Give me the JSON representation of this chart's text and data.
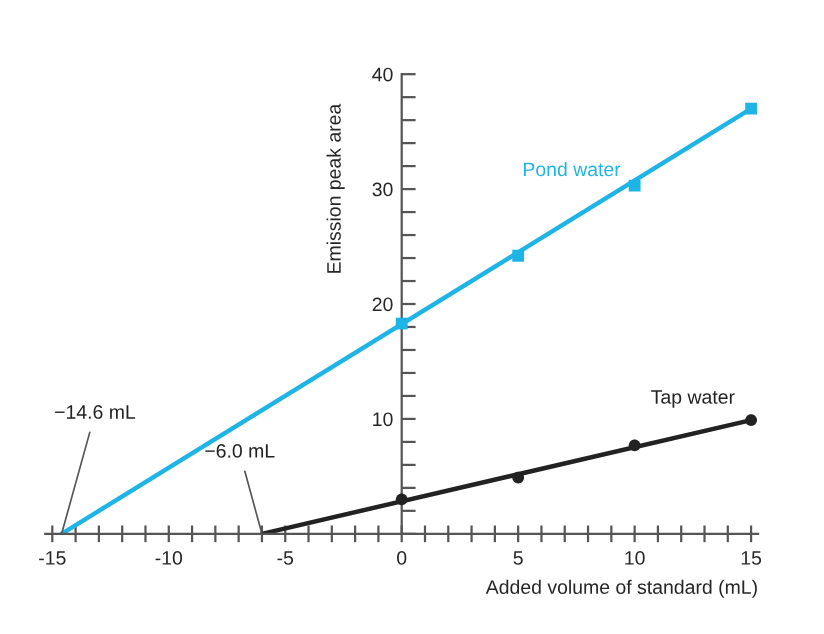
{
  "chart_data": {
    "type": "scatter",
    "xlabel": "Added volume of standard (mL)",
    "ylabel": "Emission peak area",
    "xlim": [
      -15.3,
      15.3
    ],
    "ylim": [
      0,
      40
    ],
    "xticks": [
      -15,
      {
        "value": -14,
        "label": null
      },
      {
        "value": -13,
        "label": null
      },
      {
        "value": -12,
        "label": null
      },
      {
        "value": -11,
        "label": null
      },
      -10,
      {
        "value": -9,
        "label": null
      },
      {
        "value": -8,
        "label": null
      },
      {
        "value": -7,
        "label": null
      },
      {
        "value": -6,
        "label": null
      },
      -5,
      {
        "value": -4,
        "label": null
      },
      {
        "value": -3,
        "label": null
      },
      {
        "value": -2,
        "label": null
      },
      {
        "value": -1,
        "label": null
      },
      0,
      {
        "value": 1,
        "label": null
      },
      {
        "value": 2,
        "label": null
      },
      {
        "value": 3,
        "label": null
      },
      {
        "value": 4,
        "label": null
      },
      5,
      {
        "value": 6,
        "label": null
      },
      {
        "value": 7,
        "label": null
      },
      {
        "value": 8,
        "label": null
      },
      {
        "value": 9,
        "label": null
      },
      10,
      {
        "value": 11,
        "label": null
      },
      {
        "value": 12,
        "label": null
      },
      {
        "value": 13,
        "label": null
      },
      {
        "value": 14,
        "label": null
      },
      15
    ],
    "yticks": [
      {
        "value": 0,
        "label": null
      },
      {
        "value": 2,
        "label": null
      },
      {
        "value": 4,
        "label": null
      },
      {
        "value": 6,
        "label": null
      },
      {
        "value": 8,
        "label": null
      },
      10,
      {
        "value": 12,
        "label": null
      },
      {
        "value": 14,
        "label": null
      },
      {
        "value": 16,
        "label": null
      },
      {
        "value": 18,
        "label": null
      },
      20,
      {
        "value": 22,
        "label": null
      },
      {
        "value": 24,
        "label": null
      },
      {
        "value": 26,
        "label": null
      },
      {
        "value": 28,
        "label": null
      },
      30,
      {
        "value": 32,
        "label": null
      },
      {
        "value": 34,
        "label": null
      },
      {
        "value": 36,
        "label": null
      },
      {
        "value": 38,
        "label": null
      },
      40
    ],
    "grid": false,
    "legend": false,
    "series": [
      {
        "name": "Pond water",
        "marker": "square",
        "color": "#1fb4e6",
        "x": [
          0,
          5,
          10,
          15
        ],
        "values": [
          18.3,
          24.2,
          30.3,
          37.0
        ]
      },
      {
        "type": "line",
        "marker": "none",
        "color": "#1fb4e6",
        "x": [
          -14.6,
          15
        ],
        "values": [
          0,
          37.0
        ]
      },
      {
        "name": "Tap water",
        "marker": "circle",
        "color": "#222222",
        "x": [
          0,
          5,
          10,
          15
        ],
        "values": [
          3.0,
          4.9,
          7.7,
          9.9
        ]
      },
      {
        "type": "line",
        "marker": "none",
        "color": "#222222",
        "x": [
          -6.0,
          15
        ],
        "values": [
          0,
          9.9
        ]
      }
    ],
    "annotations": [
      {
        "text": "−14.6 mL",
        "x": -14.6,
        "y": 0
      },
      {
        "text": "−6.0 mL",
        "x": -6.0,
        "y": 0
      }
    ]
  }
}
